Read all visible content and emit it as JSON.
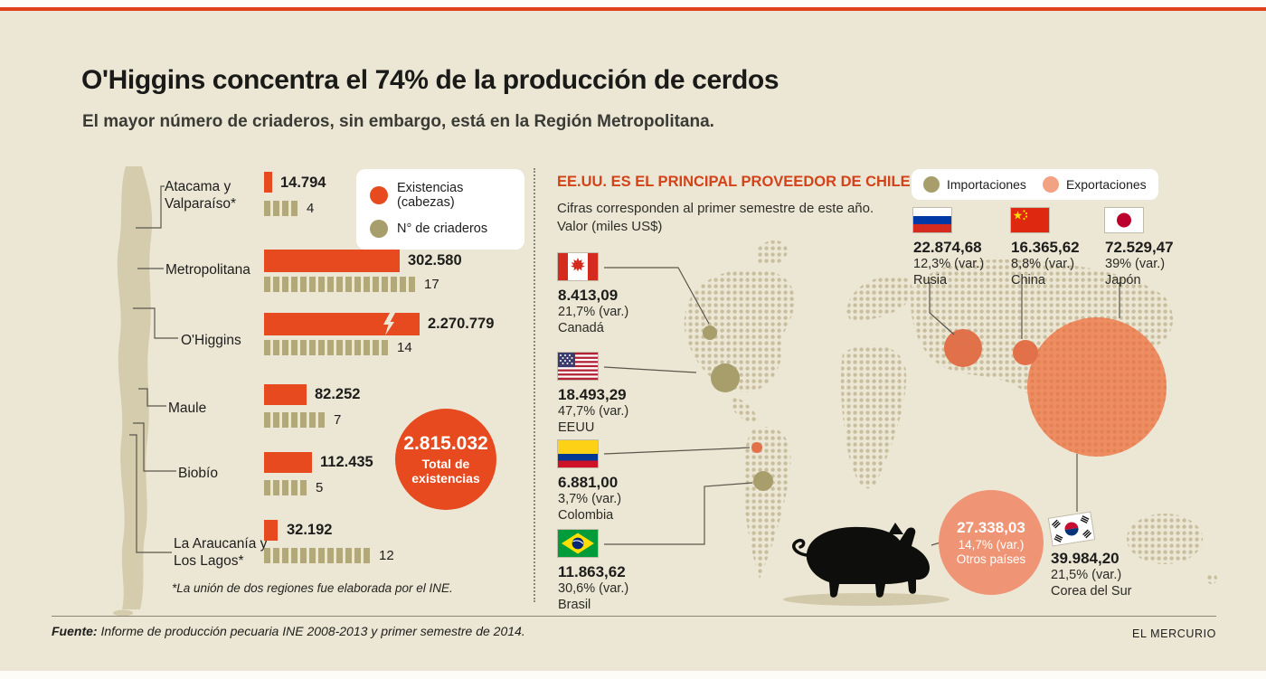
{
  "colors": {
    "background": "#ece7d5",
    "accent_red": "#e64a1e",
    "heading_red": "#d2431a",
    "olive_import": "#a89e6b",
    "tick_olive": "#b2a87a",
    "salmon_export": "#ef9475",
    "map_dot_tan": "#c9be9e"
  },
  "header": {
    "title": "O'Higgins concentra el 74% de la producción de cerdos",
    "subtitle": "El mayor número de criaderos, sin embargo, está en la Región Metropolitana."
  },
  "chart_data": [
    {
      "type": "bar",
      "title": "Existencias de cerdos y número de criaderos por región",
      "legend": [
        "Existencias (cabezas)",
        "N° de criaderos"
      ],
      "categories": [
        "Atacama y Valparaíso*",
        "Metropolitana",
        "O'Higgins",
        "Maule",
        "Biobío",
        "La Araucanía y Los Lagos*"
      ],
      "series": [
        {
          "name": "Existencias (cabezas)",
          "values": [
            14794,
            302580,
            2270779,
            82252,
            112435,
            32192
          ]
        },
        {
          "name": "N° de criaderos",
          "values": [
            4,
            17,
            14,
            7,
            5,
            12
          ]
        }
      ],
      "value_labels": [
        "14.794",
        "302.580",
        "2.270.779",
        "82.252",
        "112.435",
        "32.192"
      ],
      "total": {
        "value": "2.815.032",
        "numeric": 2815032,
        "label_line1": "Total de",
        "label_line2": "existencias"
      },
      "footnote": "*La unión de dos regiones fue elaborada por el INE."
    },
    {
      "type": "table",
      "title": "EE.UU. ES EL PRINCIPAL PROVEEDOR DE CHILE",
      "caption_line1": "Cifras corresponden al primer semestre de este año.",
      "caption_line2": "Valor (miles US$)",
      "legend": [
        "Importaciones",
        "Exportaciones"
      ],
      "imports": [
        {
          "country": "Canadá",
          "value": "8.413,09",
          "variation": "21,7% (var.)"
        },
        {
          "country": "EEUU",
          "value": "18.493,29",
          "variation": "47,7% (var.)"
        },
        {
          "country": "Colombia",
          "value": "6.881,00",
          "variation": "3,7% (var.)"
        },
        {
          "country": "Brasil",
          "value": "11.863,62",
          "variation": "30,6% (var.)"
        }
      ],
      "exports": [
        {
          "country": "Rusia",
          "value": "22.874,68",
          "variation": "12,3% (var.)"
        },
        {
          "country": "China",
          "value": "16.365,62",
          "variation": "8,8% (var.)"
        },
        {
          "country": "Japón",
          "value": "72.529,47",
          "variation": "39% (var.)"
        },
        {
          "country": "Corea del Sur",
          "value": "39.984,20",
          "variation": "21,5% (var.)"
        },
        {
          "country": "Otros países",
          "value": "27.338,03",
          "variation": "14,7% (var.)"
        }
      ]
    }
  ],
  "footer": {
    "source_label": "Fuente:",
    "source_text": " Informe de producción pecuaria INE 2008-2013 y primer semestre de 2014.",
    "credit": "EL MERCURIO"
  }
}
